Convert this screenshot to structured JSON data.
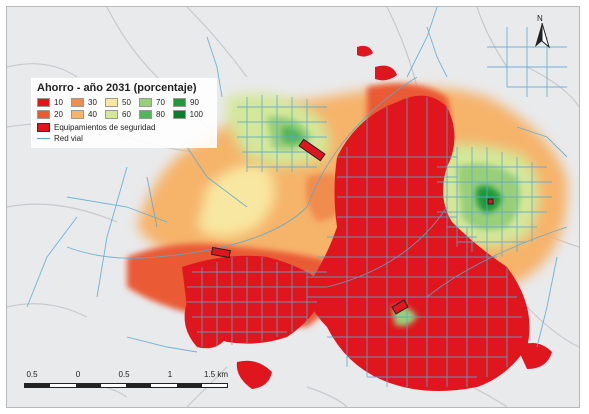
{
  "legend": {
    "title": "Ahorro - año 2031 (porcentaje)",
    "classes": [
      {
        "label": "10",
        "color": "#e0161e"
      },
      {
        "label": "30",
        "color": "#f08c4d"
      },
      {
        "label": "50",
        "color": "#f8e7a0"
      },
      {
        "label": "70",
        "color": "#99cf79"
      },
      {
        "label": "90",
        "color": "#1f9a3b"
      },
      {
        "label": "20",
        "color": "#ea5a36"
      },
      {
        "label": "40",
        "color": "#f6b36a"
      },
      {
        "label": "60",
        "color": "#d4e79a"
      },
      {
        "label": "80",
        "color": "#55b55a"
      },
      {
        "label": "100",
        "color": "#0d7a2c"
      }
    ],
    "equipment_label": "Equipamientos de seguridad",
    "road_label": "Red vial"
  },
  "scale": {
    "labels": [
      "0.5",
      "0",
      "0.5",
      "1",
      "1.5 km"
    ]
  },
  "north_label": "N",
  "colors": {
    "background": "#e9eaec",
    "road": "#5aa9cf",
    "equipment": "#e0161e"
  }
}
